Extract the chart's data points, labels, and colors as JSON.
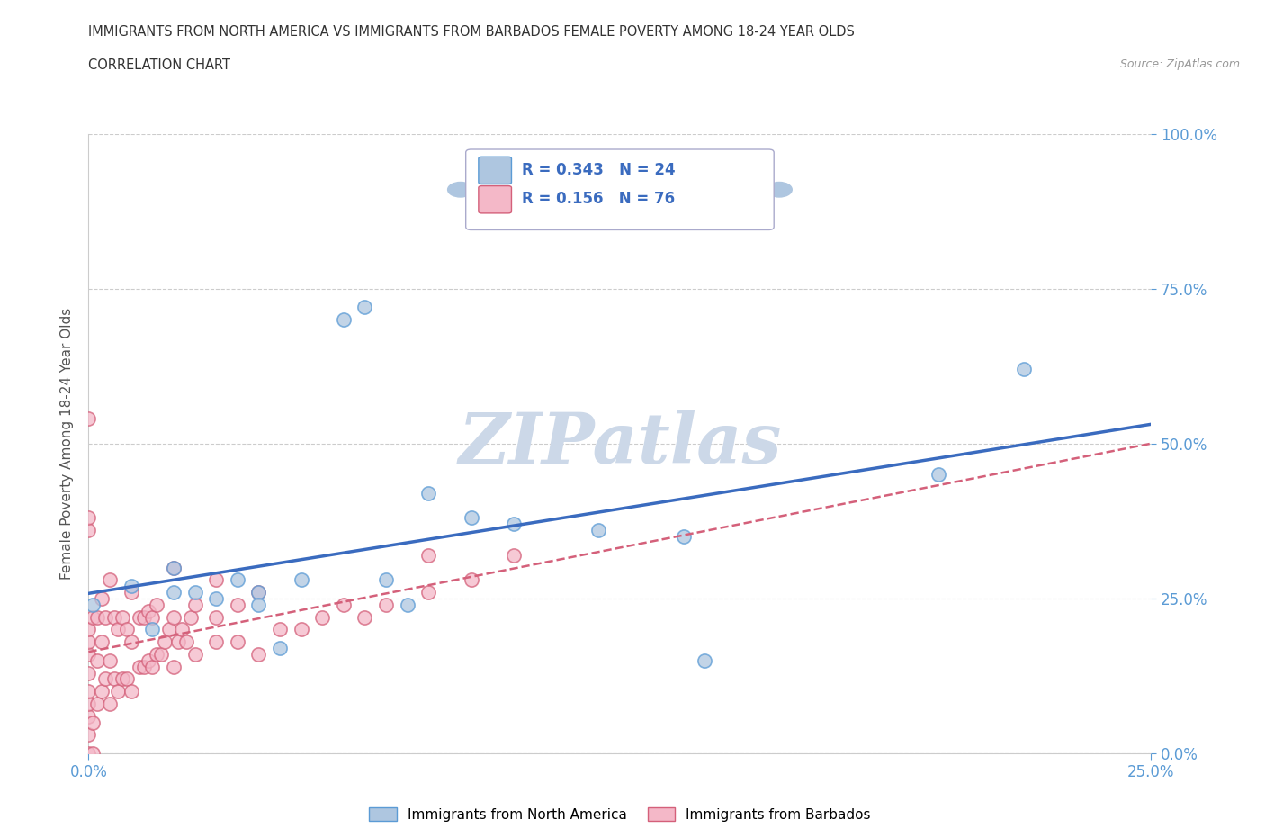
{
  "title_line1": "IMMIGRANTS FROM NORTH AMERICA VS IMMIGRANTS FROM BARBADOS FEMALE POVERTY AMONG 18-24 YEAR OLDS",
  "title_line2": "CORRELATION CHART",
  "source_text": "Source: ZipAtlas.com",
  "ylabel": "Female Poverty Among 18-24 Year Olds",
  "xlim": [
    0.0,
    0.25
  ],
  "ylim": [
    0.0,
    1.0
  ],
  "xtick_labels": [
    "0.0%",
    "25.0%"
  ],
  "ytick_labels": [
    "0.0%",
    "25.0%",
    "50.0%",
    "75.0%",
    "100.0%"
  ],
  "ytick_positions": [
    0.0,
    0.25,
    0.5,
    0.75,
    1.0
  ],
  "xtick_positions": [
    0.0,
    0.25
  ],
  "north_america_R": 0.343,
  "north_america_N": 24,
  "barbados_R": 0.156,
  "barbados_N": 76,
  "north_america_color": "#aec6e0",
  "north_america_edge": "#5b9bd5",
  "barbados_color": "#f4b8c8",
  "barbados_edge": "#d4607a",
  "regression_na_color": "#3a6bbf",
  "regression_bb_color": "#d4607a",
  "watermark_color": "#ccd8e8",
  "north_america_x": [
    0.001,
    0.01,
    0.015,
    0.02,
    0.02,
    0.025,
    0.03,
    0.035,
    0.04,
    0.04,
    0.045,
    0.05,
    0.06,
    0.065,
    0.07,
    0.075,
    0.08,
    0.09,
    0.1,
    0.12,
    0.14,
    0.145,
    0.2,
    0.22
  ],
  "north_america_y": [
    0.24,
    0.27,
    0.2,
    0.3,
    0.26,
    0.26,
    0.25,
    0.28,
    0.26,
    0.24,
    0.17,
    0.28,
    0.7,
    0.72,
    0.28,
    0.24,
    0.42,
    0.38,
    0.37,
    0.36,
    0.35,
    0.15,
    0.45,
    0.62
  ],
  "barbados_x": [
    0.0,
    0.0,
    0.0,
    0.0,
    0.0,
    0.0,
    0.0,
    0.0,
    0.0,
    0.0,
    0.001,
    0.001,
    0.002,
    0.002,
    0.002,
    0.003,
    0.003,
    0.003,
    0.004,
    0.004,
    0.005,
    0.005,
    0.005,
    0.006,
    0.006,
    0.007,
    0.007,
    0.008,
    0.008,
    0.009,
    0.009,
    0.01,
    0.01,
    0.01,
    0.012,
    0.012,
    0.013,
    0.013,
    0.014,
    0.014,
    0.015,
    0.015,
    0.016,
    0.016,
    0.017,
    0.018,
    0.019,
    0.02,
    0.02,
    0.02,
    0.021,
    0.022,
    0.023,
    0.024,
    0.025,
    0.025,
    0.03,
    0.03,
    0.03,
    0.035,
    0.035,
    0.04,
    0.04,
    0.045,
    0.05,
    0.055,
    0.06,
    0.065,
    0.07,
    0.08,
    0.08,
    0.09,
    0.1,
    0.0,
    0.0,
    0.001
  ],
  "barbados_y": [
    0.0,
    0.03,
    0.06,
    0.08,
    0.1,
    0.13,
    0.16,
    0.18,
    0.2,
    0.54,
    0.05,
    0.22,
    0.08,
    0.15,
    0.22,
    0.1,
    0.18,
    0.25,
    0.12,
    0.22,
    0.08,
    0.15,
    0.28,
    0.12,
    0.22,
    0.1,
    0.2,
    0.12,
    0.22,
    0.12,
    0.2,
    0.1,
    0.18,
    0.26,
    0.14,
    0.22,
    0.14,
    0.22,
    0.15,
    0.23,
    0.14,
    0.22,
    0.16,
    0.24,
    0.16,
    0.18,
    0.2,
    0.14,
    0.22,
    0.3,
    0.18,
    0.2,
    0.18,
    0.22,
    0.16,
    0.24,
    0.18,
    0.22,
    0.28,
    0.18,
    0.24,
    0.16,
    0.26,
    0.2,
    0.2,
    0.22,
    0.24,
    0.22,
    0.24,
    0.26,
    0.32,
    0.28,
    0.32,
    0.36,
    0.38,
    0.0
  ]
}
